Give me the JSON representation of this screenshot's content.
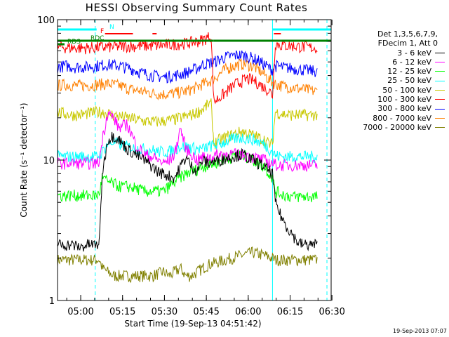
{
  "chart_data": {
    "type": "line",
    "title": "HESSI Observing Summary Count Rates",
    "xlabel": "Start Time (19-Sep-13 04:51:42)",
    "ylabel": "Count Rate (s⁻¹ detector⁻¹)",
    "yscale": "log",
    "ylim": [
      1,
      100
    ],
    "y_ticks": [
      {
        "v": 1,
        "label": "1"
      },
      {
        "v": 10,
        "label": "10"
      },
      {
        "v": 100,
        "label": "100"
      }
    ],
    "x_unit": "minutes after 04:51:42",
    "xlim": [
      0,
      98
    ],
    "x_ticks": [
      {
        "t": 8.3,
        "label": "05:00"
      },
      {
        "t": 23.3,
        "label": "05:15"
      },
      {
        "t": 38.3,
        "label": "05:30"
      },
      {
        "t": 53.3,
        "label": "05:45"
      },
      {
        "t": 68.3,
        "label": "06:00"
      },
      {
        "t": 83.3,
        "label": "06:15"
      },
      {
        "t": 98.3,
        "label": "06:30"
      }
    ],
    "legend": {
      "placement": "right",
      "header": [
        "Det 1,3,5,6,7,9,",
        "FDecim 1, Att 0"
      ],
      "entries": [
        {
          "label": "3 - 6 keV",
          "color": "#000000"
        },
        {
          "label": "6 - 12 keV",
          "color": "#ff00ff"
        },
        {
          "label": "12 - 25 keV",
          "color": "#00ff00"
        },
        {
          "label": "25 - 50 keV",
          "color": "#00ffff"
        },
        {
          "label": "50 - 100 keV",
          "color": "#c8c800"
        },
        {
          "label": "100 - 300 keV",
          "color": "#ff0000"
        },
        {
          "label": "300 - 800 keV",
          "color": "#0000ff"
        },
        {
          "label": "800 - 7000 keV",
          "color": "#ff8000"
        },
        {
          "label": "7000 - 20000 keV",
          "color": "#808000"
        }
      ]
    },
    "series": [
      {
        "name": "3 - 6 keV",
        "color": "#000000",
        "x": [
          0,
          2,
          5,
          8,
          11,
          14,
          15,
          16,
          18,
          20,
          22,
          25,
          28,
          31,
          34,
          36,
          38,
          40,
          42,
          44,
          46,
          48,
          50,
          52,
          54,
          58,
          62,
          66,
          70,
          74,
          77,
          78,
          80,
          82,
          84,
          86,
          88,
          90,
          92,
          93
        ],
        "y": [
          2.5,
          2.5,
          2.5,
          2.4,
          2.5,
          2.5,
          2.6,
          8,
          14,
          15,
          14,
          12,
          11,
          10,
          9,
          8.3,
          8,
          7.7,
          7.5,
          9,
          10.5,
          9,
          8.5,
          10,
          9.5,
          10,
          10.5,
          11,
          10,
          9,
          8,
          5,
          4,
          3.4,
          3,
          2.6,
          2.5,
          2.5,
          2.5,
          2.5
        ]
      },
      {
        "name": "6 - 12 keV",
        "color": "#ff00ff",
        "x": [
          0,
          2,
          5,
          8,
          11,
          14,
          15,
          16,
          18,
          20,
          22,
          25,
          28,
          31,
          34,
          36,
          38,
          40,
          42,
          44,
          46,
          48,
          50,
          52,
          54,
          58,
          62,
          66,
          70,
          74,
          77,
          78,
          80,
          82,
          84,
          86,
          88,
          90,
          92,
          93
        ],
        "y": [
          9.5,
          9.5,
          9.5,
          9.5,
          9.5,
          9.5,
          9.8,
          14,
          22,
          20,
          17,
          18,
          13,
          11,
          10.5,
          10,
          9.5,
          10,
          11,
          17,
          12,
          11,
          10,
          10.5,
          10.5,
          11,
          11,
          11,
          10.5,
          10,
          9.5,
          9.3,
          9.2,
          9.2,
          9.2,
          9.2,
          9.2,
          9.2,
          9.2,
          9.2
        ]
      },
      {
        "name": "12 - 25 keV",
        "color": "#00ff00",
        "x": [
          0,
          2,
          5,
          8,
          11,
          14,
          15,
          16,
          18,
          20,
          22,
          25,
          28,
          31,
          34,
          36,
          38,
          40,
          42,
          44,
          46,
          48,
          50,
          52,
          54,
          58,
          62,
          66,
          70,
          74,
          77,
          78,
          80,
          82,
          84,
          86,
          88,
          90,
          92,
          93
        ],
        "y": [
          5.6,
          5.6,
          5.6,
          5.6,
          5.6,
          5.6,
          5.8,
          7.5,
          7,
          6.8,
          6.5,
          6.5,
          6.3,
          6,
          6,
          6,
          6,
          6.5,
          7,
          7.5,
          8,
          8.3,
          8.6,
          9,
          9.2,
          9.8,
          10.5,
          11,
          10,
          9,
          7.5,
          6,
          5.8,
          5.6,
          5.5,
          5.5,
          5.5,
          5.5,
          5.5,
          5.5
        ]
      },
      {
        "name": "25 - 50 keV",
        "color": "#00ffff",
        "x": [
          0,
          2,
          5,
          8,
          11,
          14,
          15,
          16,
          18,
          20,
          22,
          25,
          28,
          31,
          34,
          36,
          38,
          40,
          42,
          44,
          46,
          48,
          50,
          52,
          54,
          58,
          62,
          66,
          70,
          74,
          77,
          78,
          80,
          82,
          84,
          86,
          88,
          90,
          92,
          93
        ],
        "y": [
          10.6,
          10.6,
          10.6,
          10.6,
          10.6,
          10.6,
          10.8,
          11.5,
          13,
          13.5,
          13,
          12.5,
          12,
          12,
          11.8,
          11.5,
          11.5,
          11.5,
          12,
          12.5,
          12.5,
          12.3,
          12,
          12,
          12.5,
          13,
          14,
          14.5,
          14,
          13,
          11.5,
          10.8,
          10.6,
          10.6,
          10.6,
          10.6,
          10.6,
          10.6,
          10.6,
          10.6
        ]
      },
      {
        "name": "50 - 100 keV",
        "color": "#c8c800",
        "x": [
          0,
          2,
          5,
          8,
          11,
          14,
          15,
          16,
          18,
          20,
          22,
          25,
          28,
          31,
          34,
          36,
          38,
          40,
          42,
          44,
          46,
          48,
          50,
          52,
          54,
          55,
          56,
          58,
          60,
          62,
          64,
          66,
          68,
          70,
          72,
          74,
          76,
          77,
          78,
          80,
          82,
          84,
          86,
          88,
          90,
          92,
          93
        ],
        "y": [
          22,
          21.5,
          21,
          21,
          21.5,
          22,
          22,
          22,
          21.5,
          21,
          20.5,
          20,
          19.5,
          19,
          18.8,
          18.8,
          19,
          19.2,
          19.5,
          20,
          20.5,
          21,
          22,
          23,
          25,
          25,
          13,
          14,
          14.5,
          15,
          15.5,
          16,
          15.5,
          15,
          14.5,
          14,
          13,
          13,
          22,
          21.5,
          21,
          21,
          21,
          21,
          21,
          21,
          21
        ]
      },
      {
        "name": "100 - 300 keV",
        "color": "#ff0000",
        "x": [
          0,
          3,
          6,
          10,
          14,
          18,
          22,
          26,
          30,
          34,
          38,
          42,
          46,
          50,
          52,
          54,
          55,
          56,
          60,
          64,
          68,
          70,
          72,
          76,
          77,
          78,
          80,
          84,
          88,
          92,
          93
        ],
        "y": [
          64,
          63.5,
          63,
          63,
          63.5,
          64,
          64.5,
          65,
          65,
          65.5,
          66,
          67,
          68,
          70,
          72,
          75,
          77,
          26,
          30,
          35,
          38,
          37,
          35,
          31,
          29,
          68,
          66,
          65,
          64,
          63,
          63
        ]
      },
      {
        "name": "300 - 800 keV",
        "color": "#0000ff",
        "x": [
          0,
          3,
          6,
          10,
          14,
          18,
          22,
          26,
          30,
          34,
          38,
          42,
          46,
          50,
          52,
          54,
          56,
          58,
          60,
          62,
          64,
          66,
          68,
          70,
          72,
          74,
          76,
          77,
          78,
          80,
          84,
          88,
          92,
          93
        ],
        "y": [
          46,
          47,
          46,
          46,
          47,
          48,
          47,
          45,
          42,
          40,
          39,
          40,
          42,
          45,
          48,
          49,
          50,
          52,
          54,
          55,
          56,
          56,
          55,
          53,
          51,
          48,
          45,
          44,
          47,
          46,
          45,
          44,
          43,
          43
        ]
      },
      {
        "name": "800 - 7000 keV",
        "color": "#ff8000",
        "x": [
          0,
          3,
          6,
          10,
          14,
          18,
          22,
          26,
          30,
          34,
          38,
          42,
          46,
          50,
          52,
          54,
          56,
          58,
          60,
          62,
          64,
          66,
          68,
          70,
          72,
          74,
          76,
          77,
          78,
          80,
          84,
          88,
          92,
          93
        ],
        "y": [
          34,
          34.5,
          34,
          34,
          34.5,
          35,
          34,
          32,
          31,
          30,
          29.5,
          30,
          31,
          33,
          35,
          36,
          38,
          41,
          44,
          46,
          47.5,
          48.5,
          48,
          46.5,
          44,
          41,
          37,
          36,
          35,
          34,
          33,
          32,
          31,
          31
        ]
      },
      {
        "name": "7000 - 20000 keV",
        "color": "#808000",
        "x": [
          0,
          2,
          5,
          8,
          11,
          14,
          15,
          16,
          18,
          20,
          22,
          25,
          28,
          31,
          34,
          36,
          38,
          40,
          42,
          44,
          46,
          48,
          50,
          52,
          54,
          58,
          62,
          66,
          70,
          74,
          77,
          78,
          80,
          82,
          84,
          86,
          88,
          90,
          92,
          93
        ],
        "y": [
          1.95,
          1.95,
          1.95,
          1.95,
          1.95,
          1.95,
          1.95,
          1.7,
          1.6,
          1.5,
          1.5,
          1.5,
          1.5,
          1.5,
          1.5,
          1.55,
          1.6,
          1.5,
          1.6,
          1.7,
          1.5,
          1.5,
          1.6,
          1.7,
          1.8,
          1.9,
          2.0,
          2.1,
          2.2,
          2.1,
          2.0,
          1.95,
          1.95,
          1.95,
          1.95,
          1.95,
          1.95,
          1.95,
          1.95,
          1.95
        ]
      }
    ],
    "flag_bars": [
      {
        "label": "N",
        "color": "#00ffff",
        "segments": [
          [
            0,
            14
          ],
          [
            77,
            98
          ]
        ]
      },
      {
        "label": "F",
        "color": "#ff0000",
        "segments": [
          [
            17,
            27
          ],
          [
            34,
            35.5
          ],
          [
            77.5,
            80
          ]
        ]
      },
      {
        "label": "RDC",
        "color": "#008000",
        "segments": [
          [
            0,
            56
          ],
          [
            56,
            80
          ],
          [
            80,
            98
          ]
        ]
      },
      {
        "label": "RDS",
        "color": "#008000",
        "segments": [
          [
            0,
            2.5
          ]
        ]
      }
    ],
    "markers": [
      {
        "t": 13.5,
        "color": "#00ffff",
        "style": "dashed"
      },
      {
        "t": 77,
        "color": "#00ffff",
        "style": "solid"
      },
      {
        "t": 96.5,
        "color": "#00ffff",
        "style": "dashed"
      },
      {
        "t": 0,
        "color": "#00ffff",
        "style": "solid"
      }
    ]
  },
  "timestamp": "19-Sep-2013 07:07"
}
